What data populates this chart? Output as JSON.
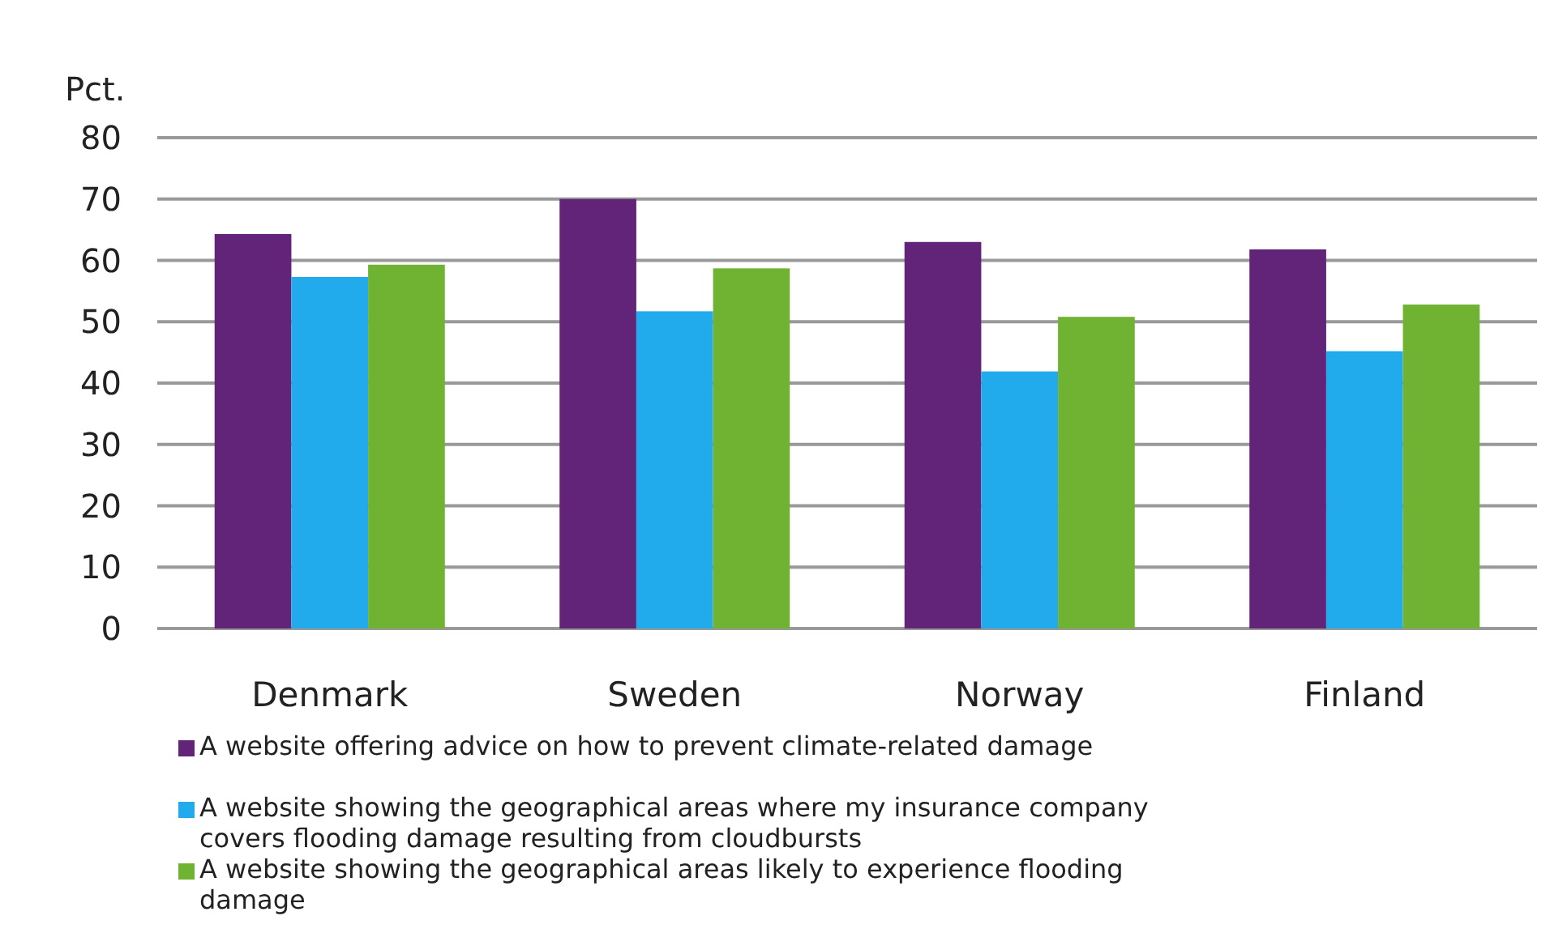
{
  "chart_data": {
    "type": "bar",
    "ylabel": "Pct.",
    "categories": [
      "Denmark",
      "Sweden",
      "Norway",
      "Finland"
    ],
    "series": [
      {
        "name": "A website offering advice on how to prevent climate-related damage",
        "color": "#622479",
        "values": [
          64.3,
          70,
          63,
          61.8
        ]
      },
      {
        "name": "A website showing the geographical areas where my insurance company covers flooding damage resulting from cloudbursts",
        "color": "#22abec",
        "values": [
          57.3,
          51.7,
          41.9,
          45.2
        ]
      },
      {
        "name": "A website showing the geographical areas likely to experience flooding damage",
        "color": "#70b333",
        "values": [
          59.3,
          58.7,
          50.8,
          52.8
        ]
      }
    ],
    "ylim": [
      0,
      80
    ],
    "yticks": [
      0,
      10,
      20,
      30,
      40,
      50,
      60,
      70,
      80
    ],
    "grid": "y",
    "legend": "bottom"
  }
}
